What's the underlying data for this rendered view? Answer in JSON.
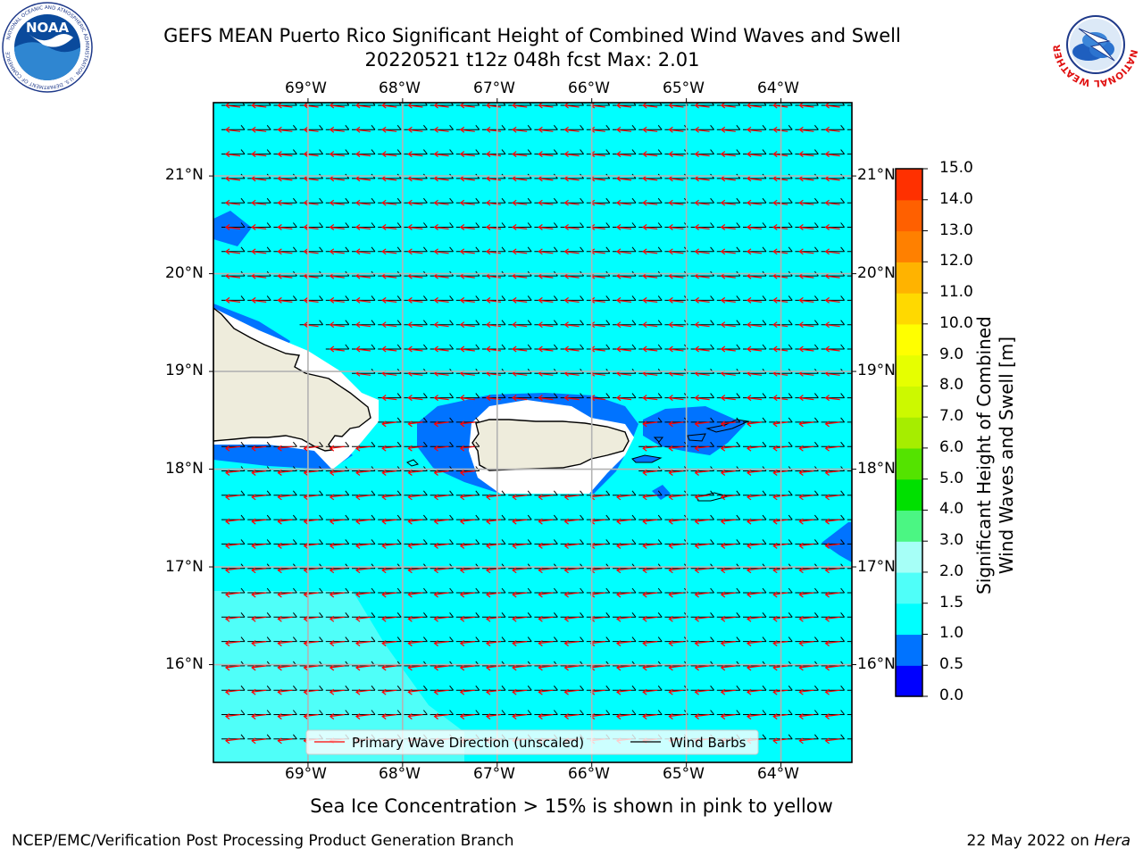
{
  "title": {
    "line1": "GEFS MEAN Puerto Rico Significant Height of Combined Wind Waves and Swell",
    "line2": "20220521 t12z 048h fcst   Max: 2.01"
  },
  "logos": {
    "left": {
      "text": "NOAA",
      "ring_text": "NATIONAL OCEANIC AND ATMOSPHERIC ADMINISTRATION · U.S. DEPARTMENT OF COMMERCE",
      "icon": "noaa-logo"
    },
    "right": {
      "ring_text": "NATIONAL WEATHER SERVICE",
      "icon": "nws-logo"
    }
  },
  "map": {
    "lon_labels": [
      "69°W",
      "68°W",
      "67°W",
      "66°W",
      "65°W",
      "64°W"
    ],
    "lat_labels": [
      "21°N",
      "20°N",
      "19°N",
      "18°N",
      "17°N",
      "16°N"
    ],
    "extent": {
      "lon": [
        -70.0,
        -63.25
      ],
      "lat": [
        15.0,
        21.75
      ]
    },
    "ocean_color": "#00ffff",
    "land_color": "#eeecdc",
    "legend": {
      "wave_label": "Primary Wave Direction (unscaled)",
      "barb_label": "Wind Barbs"
    }
  },
  "colorbar": {
    "title": "Significant Height of Combined\nWind Waves and Swell [m]",
    "ticks": [
      "0.0",
      "0.5",
      "1.0",
      "1.5",
      "2.0",
      "3.0",
      "4.0",
      "5.0",
      "6.0",
      "7.0",
      "8.0",
      "9.0",
      "10.0",
      "11.0",
      "12.0",
      "13.0",
      "14.0",
      "15.0"
    ],
    "colors": [
      "#0000ff",
      "#0073ff",
      "#00ffff",
      "#4ffff9",
      "#a6fff7",
      "#4bf683",
      "#00e000",
      "#54e300",
      "#a6ed00",
      "#ccf900",
      "#e6ff00",
      "#ffff00",
      "#ffd900",
      "#ffb300",
      "#ff8000",
      "#ff6000",
      "#ff3000"
    ]
  },
  "note": "Sea Ice Concentration > 15% is shown in pink to yellow",
  "footer": {
    "left": "NCEP/EMC/Verification Post Processing Product Generation Branch",
    "date": "22 May 2022 on ",
    "host": "Hera"
  },
  "max_value": 2.01
}
